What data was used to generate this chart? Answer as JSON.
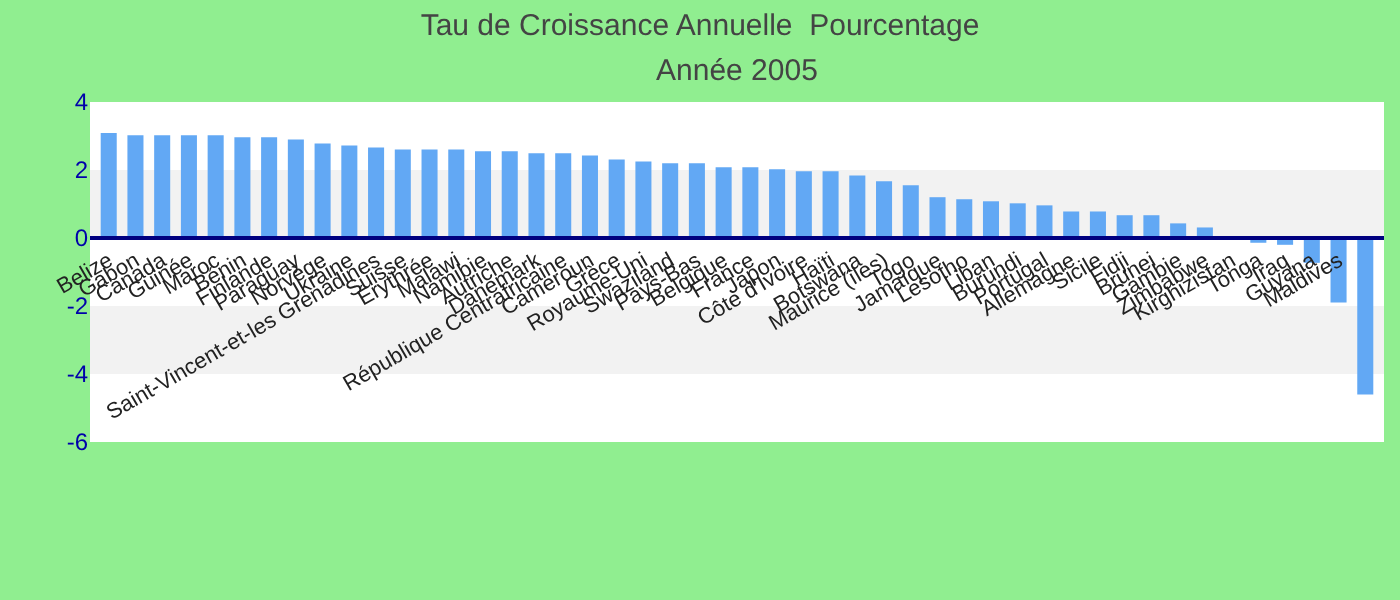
{
  "chart_data": {
    "type": "bar",
    "title": "Tau de Croissance Annuelle  Pourcentage",
    "subtitle": "Année 2005",
    "categories": [
      "Belize",
      "Gabon",
      "Canada",
      "Guinée",
      "Maroc",
      "Bénin",
      "Finlande",
      "Paraguay",
      "Norvège",
      "Ukraine",
      "Saint-Vincent-et-les Grenadines",
      "Suisse",
      "Érythrée",
      "Malawi",
      "Namibie",
      "Autriche",
      "Danemark",
      "République Centrafricaine",
      "Cameroun",
      "Grèce",
      "Royaume-Uni",
      "Swaziland",
      "Pays-Bas",
      "Belgique",
      "France",
      "Japon",
      "Côte d'Ivoire",
      "Haïti",
      "Botswana",
      "Maurice (îles)",
      "Togo",
      "Jamaïque",
      "Lesotho",
      "Liban",
      "Burundi",
      "Portugal",
      "Allemagne",
      "Sicile",
      "Fidji",
      "Brunei",
      "Gambie",
      "Zimbabwe",
      "Kirghizistan",
      "Tonga",
      "Iraq",
      "Guyana",
      "Maldives",
      null
    ],
    "values": [
      3.09,
      3.02,
      3.02,
      3.02,
      3.02,
      2.96,
      2.96,
      2.9,
      2.78,
      2.72,
      2.66,
      2.6,
      2.6,
      2.6,
      2.55,
      2.55,
      2.49,
      2.49,
      2.43,
      2.31,
      2.25,
      2.2,
      2.2,
      2.08,
      2.08,
      2.02,
      1.96,
      1.96,
      1.84,
      1.67,
      1.55,
      1.2,
      1.14,
      1.08,
      1.02,
      0.96,
      0.78,
      0.78,
      0.67,
      0.67,
      0.43,
      0.31,
      0,
      -0.14,
      -0.2,
      -0.73,
      -1.9,
      -4.6
    ],
    "color": "#62a8f4",
    "ylim": [
      -6,
      4
    ],
    "yticks": [
      -6,
      -4,
      -2,
      0,
      2,
      4
    ],
    "bands": [
      {
        "axis": "y",
        "from": 0,
        "to": 2,
        "color": "#f2f2f2"
      },
      {
        "axis": "y",
        "from": -4,
        "to": -2,
        "color": "#f2f2f2"
      }
    ],
    "grid": false
  }
}
